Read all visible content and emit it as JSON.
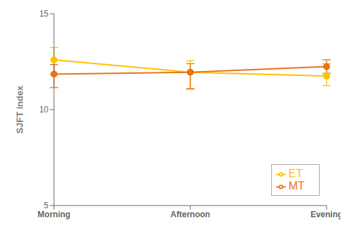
{
  "chart_data": {
    "type": "line",
    "ylabel": "SJFT index",
    "categories": [
      "Morning",
      "Afternoon",
      "Evening"
    ],
    "series": [
      {
        "name": "ET",
        "color": "#FFC000",
        "values": [
          12.6,
          11.95,
          11.75
        ],
        "errors_lower": [
          0.75,
          0.9,
          0.5
        ],
        "errors_upper": [
          0.65,
          0.6,
          0.65
        ]
      },
      {
        "name": "MT",
        "color": "#E8731A",
        "values": [
          11.85,
          11.95,
          12.25
        ],
        "errors_lower": [
          0.7,
          0.85,
          0.35
        ],
        "errors_upper": [
          0.5,
          0.45,
          0.35
        ]
      }
    ],
    "ylim": [
      5,
      15
    ],
    "yticks": [
      5,
      10,
      15
    ],
    "legend": "lower right",
    "grid": false,
    "marker": "circle"
  }
}
